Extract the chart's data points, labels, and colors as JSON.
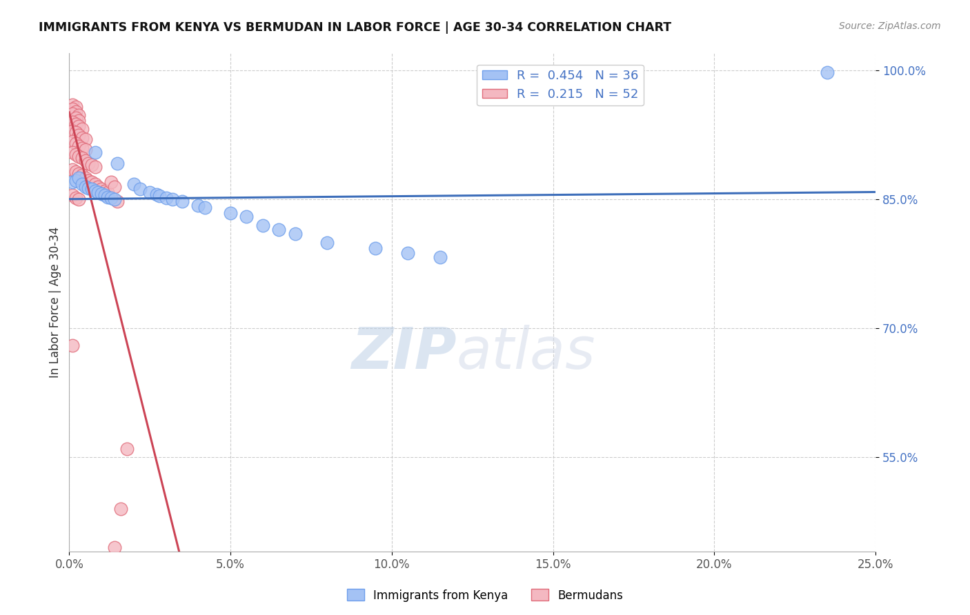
{
  "title": "IMMIGRANTS FROM KENYA VS BERMUDAN IN LABOR FORCE | AGE 30-34 CORRELATION CHART",
  "source": "Source: ZipAtlas.com",
  "ylabel": "In Labor Force | Age 30-34",
  "xlim": [
    0.0,
    0.25
  ],
  "ylim": [
    0.44,
    1.02
  ],
  "yticks": [
    0.55,
    0.7,
    0.85,
    1.0
  ],
  "ytick_labels": [
    "55.0%",
    "70.0%",
    "85.0%",
    "100.0%"
  ],
  "xticks": [
    0.0,
    0.05,
    0.1,
    0.15,
    0.2,
    0.25
  ],
  "xtick_labels": [
    "0.0%",
    "5.0%",
    "10.0%",
    "15.0%",
    "20.0%",
    "25.0%"
  ],
  "legend_kenya_r": "0.454",
  "legend_kenya_n": "36",
  "legend_bermuda_r": "0.215",
  "legend_bermuda_n": "52",
  "kenya_color": "#a4c2f4",
  "bermuda_color": "#f4b8c1",
  "kenya_edge_color": "#6d9eeb",
  "bermuda_edge_color": "#e06c7a",
  "kenya_line_color": "#3d6eba",
  "bermuda_line_color": "#cc4455",
  "kenya_scatter": [
    [
      0.001,
      0.87
    ],
    [
      0.002,
      0.872
    ],
    [
      0.003,
      0.875
    ],
    [
      0.004,
      0.868
    ],
    [
      0.005,
      0.865
    ],
    [
      0.006,
      0.863
    ],
    [
      0.007,
      0.862
    ],
    [
      0.008,
      0.86
    ],
    [
      0.009,
      0.858
    ],
    [
      0.01,
      0.857
    ],
    [
      0.011,
      0.855
    ],
    [
      0.012,
      0.853
    ],
    [
      0.013,
      0.852
    ],
    [
      0.014,
      0.85
    ],
    [
      0.008,
      0.905
    ],
    [
      0.015,
      0.892
    ],
    [
      0.02,
      0.868
    ],
    [
      0.022,
      0.862
    ],
    [
      0.025,
      0.858
    ],
    [
      0.027,
      0.856
    ],
    [
      0.028,
      0.854
    ],
    [
      0.03,
      0.852
    ],
    [
      0.032,
      0.85
    ],
    [
      0.035,
      0.848
    ],
    [
      0.04,
      0.843
    ],
    [
      0.042,
      0.841
    ],
    [
      0.05,
      0.834
    ],
    [
      0.055,
      0.83
    ],
    [
      0.06,
      0.82
    ],
    [
      0.065,
      0.815
    ],
    [
      0.07,
      0.81
    ],
    [
      0.08,
      0.8
    ],
    [
      0.095,
      0.793
    ],
    [
      0.105,
      0.788
    ],
    [
      0.115,
      0.783
    ],
    [
      0.235,
      0.998
    ]
  ],
  "bermuda_scatter": [
    [
      0.001,
      0.96
    ],
    [
      0.002,
      0.958
    ],
    [
      0.001,
      0.955
    ],
    [
      0.002,
      0.952
    ],
    [
      0.001,
      0.95
    ],
    [
      0.003,
      0.948
    ],
    [
      0.002,
      0.945
    ],
    [
      0.003,
      0.942
    ],
    [
      0.001,
      0.94
    ],
    [
      0.002,
      0.938
    ],
    [
      0.003,
      0.935
    ],
    [
      0.004,
      0.932
    ],
    [
      0.001,
      0.93
    ],
    [
      0.002,
      0.928
    ],
    [
      0.003,
      0.925
    ],
    [
      0.004,
      0.922
    ],
    [
      0.005,
      0.92
    ],
    [
      0.001,
      0.918
    ],
    [
      0.002,
      0.915
    ],
    [
      0.003,
      0.912
    ],
    [
      0.004,
      0.91
    ],
    [
      0.005,
      0.908
    ],
    [
      0.001,
      0.905
    ],
    [
      0.002,
      0.902
    ],
    [
      0.003,
      0.9
    ],
    [
      0.004,
      0.898
    ],
    [
      0.005,
      0.895
    ],
    [
      0.006,
      0.892
    ],
    [
      0.007,
      0.89
    ],
    [
      0.008,
      0.888
    ],
    [
      0.001,
      0.885
    ],
    [
      0.002,
      0.882
    ],
    [
      0.003,
      0.88
    ],
    [
      0.004,
      0.878
    ],
    [
      0.005,
      0.875
    ],
    [
      0.006,
      0.872
    ],
    [
      0.007,
      0.87
    ],
    [
      0.008,
      0.868
    ],
    [
      0.009,
      0.865
    ],
    [
      0.01,
      0.862
    ],
    [
      0.011,
      0.86
    ],
    [
      0.012,
      0.858
    ],
    [
      0.001,
      0.855
    ],
    [
      0.002,
      0.852
    ],
    [
      0.003,
      0.85
    ],
    [
      0.001,
      0.68
    ],
    [
      0.013,
      0.87
    ],
    [
      0.014,
      0.865
    ],
    [
      0.015,
      0.848
    ],
    [
      0.018,
      0.56
    ],
    [
      0.016,
      0.49
    ],
    [
      0.014,
      0.445
    ]
  ],
  "watermark_zip": "ZIP",
  "watermark_atlas": "atlas",
  "background_color": "#ffffff",
  "grid_color": "#cccccc"
}
